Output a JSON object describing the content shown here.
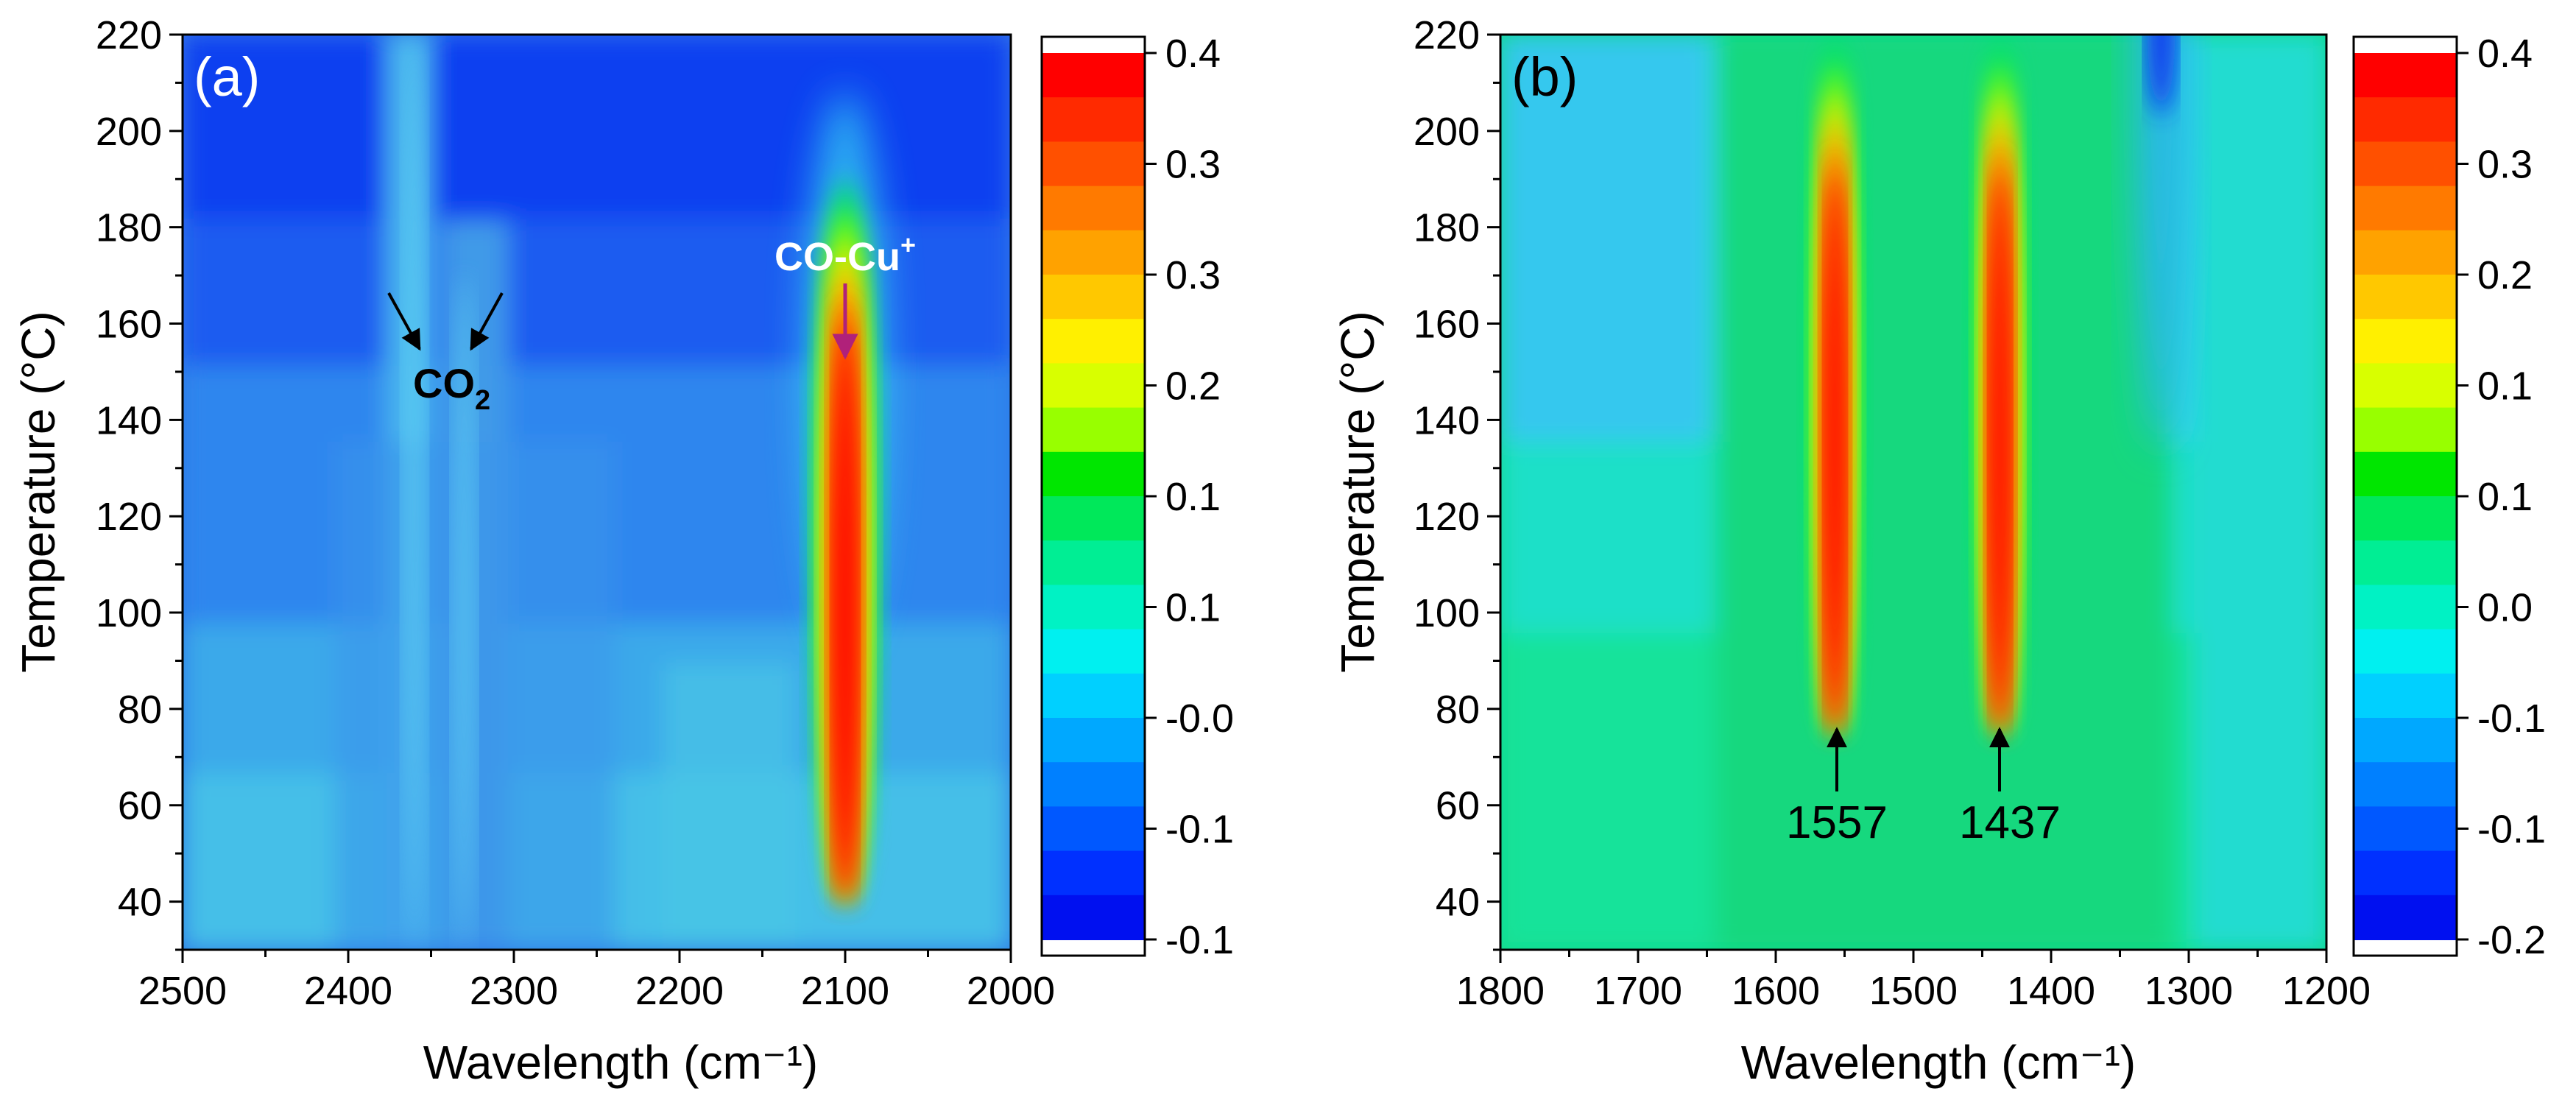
{
  "chart_data": [
    {
      "type": "heatmap",
      "panel_label": "(a)",
      "xlabel": "Wavelength (cm⁻¹)",
      "ylabel": "Temperature (°C)",
      "xlim": [
        2500,
        2000
      ],
      "ylim": [
        30,
        220
      ],
      "x_ticks": [
        "2500",
        "2400",
        "2300",
        "2200",
        "2100",
        "2000"
      ],
      "y_ticks": [
        "40",
        "60",
        "80",
        "100",
        "120",
        "140",
        "160",
        "180",
        "200",
        "220"
      ],
      "color_range": [
        -0.1,
        0.4
      ],
      "colorbar_ticks": [
        "0.4",
        "0.3",
        "0.3",
        "0.2",
        "0.1",
        "0.1",
        "-0.0",
        "-0.1",
        "-0.1"
      ],
      "features": [
        {
          "name": "CO-Cu+ band",
          "center_x": 2100,
          "temp_range": [
            40,
            190
          ],
          "peak": 0.4
        },
        {
          "name": "CO2 band left",
          "center_x": 2360,
          "temp_range": [
            30,
            220
          ],
          "peak": 0.03
        },
        {
          "name": "CO2 band right",
          "center_x": 2330,
          "temp_range": [
            30,
            170
          ],
          "peak": 0.01
        }
      ],
      "annotations": [
        {
          "text": "CO-Cu",
          "superscript": "+",
          "x": 2100,
          "y": 165
        },
        {
          "text": "CO",
          "subscript": "2",
          "x": 2343,
          "y": 147
        }
      ]
    },
    {
      "type": "heatmap",
      "panel_label": "(b)",
      "xlabel": "Wavelength (cm⁻¹)",
      "ylabel": "Temperature (°C)",
      "xlim": [
        1800,
        1200
      ],
      "ylim": [
        30,
        220
      ],
      "x_ticks": [
        "1800",
        "1700",
        "1600",
        "1500",
        "1400",
        "1300",
        "1200"
      ],
      "y_ticks": [
        "40",
        "60",
        "80",
        "100",
        "120",
        "140",
        "160",
        "180",
        "200",
        "220"
      ],
      "color_range": [
        -0.2,
        0.4
      ],
      "colorbar_ticks": [
        "0.4",
        "0.3",
        "0.2",
        "0.1",
        "0.1",
        "0.0",
        "-0.1",
        "-0.1",
        "-0.2"
      ],
      "features": [
        {
          "name": "1557 band",
          "center_x": 1557,
          "temp_range": [
            75,
            220
          ],
          "peak": 0.4
        },
        {
          "name": "1437 band",
          "center_x": 1437,
          "temp_range": [
            75,
            220
          ],
          "peak": 0.4
        },
        {
          "name": "1320 depletion",
          "center_x": 1320,
          "temp_range": [
            60,
            220
          ],
          "peak": -0.2
        }
      ],
      "annotations": [
        {
          "text": "1557",
          "x": 1557,
          "y": 58
        },
        {
          "text": "1437",
          "x": 1437,
          "y": 58
        }
      ]
    }
  ]
}
